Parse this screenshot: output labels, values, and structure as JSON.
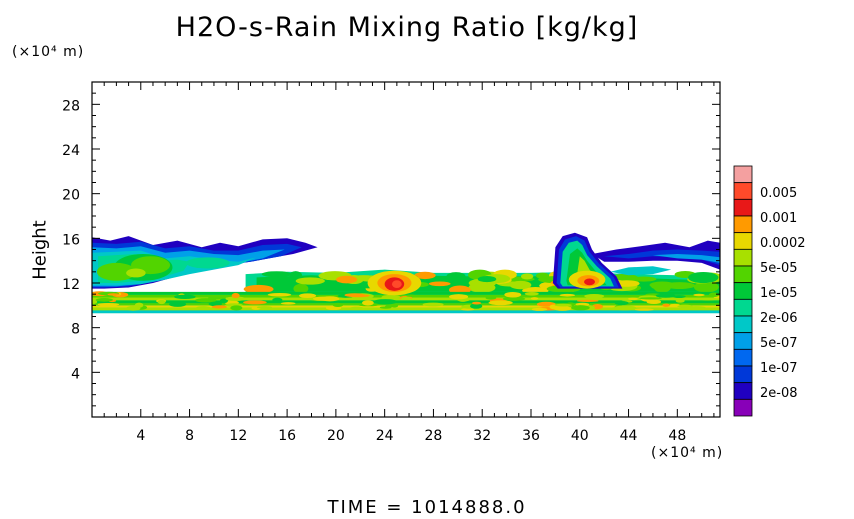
{
  "title": "H2O-s-Rain Mixing Ratio [kg/kg]",
  "y_unit": "(×10⁴ m)",
  "x_unit": "(×10⁴ m)",
  "y_label": "Height",
  "time_label": "TIME  =  1014888.0",
  "chart_data": {
    "type": "heatmap",
    "title": "H2O-s-Rain Mixing Ratio [kg/kg]",
    "xlabel": "",
    "ylabel": "Height",
    "xlim": [
      0,
      51.5
    ],
    "ylim": [
      0,
      30.0
    ],
    "x_ticks": [
      "4",
      "8",
      "12",
      "16",
      "20",
      "24",
      "28",
      "32",
      "36",
      "40",
      "44",
      "48"
    ],
    "y_ticks": [
      "4",
      "8",
      "12",
      "16",
      "20",
      "24",
      "28"
    ],
    "colorbar": {
      "labels": [
        "0.005",
        "0.001",
        "0.0002",
        "5e-05",
        "1e-05",
        "2e-06",
        "5e-07",
        "1e-07",
        "2e-08"
      ],
      "colors": [
        "#f4a0a0",
        "#ff4a2a",
        "#e81818",
        "#ff9a00",
        "#e8d800",
        "#a8e000",
        "#52d400",
        "#00c838",
        "#00d890",
        "#00c8c8",
        "#00a0e8",
        "#0068f0",
        "#0038d8",
        "#2000c0",
        "#8800b8"
      ]
    },
    "features": [
      {
        "name": "main cloud layer",
        "x_range": [
          0,
          51.5
        ],
        "height_range": [
          9.3,
          11.2
        ]
      },
      {
        "name": "left anvil",
        "x_range": [
          0,
          18.5
        ],
        "height_range": [
          11.5,
          16.1
        ]
      },
      {
        "name": "mid-level cloud band",
        "x_range": [
          13.5,
          51.5
        ],
        "height_range": [
          11.0,
          13.2
        ]
      },
      {
        "name": "convective core",
        "x_center": 24.8,
        "height_range": [
          11.0,
          13.0
        ],
        "max_value": 0.001
      },
      {
        "name": "tall convective cell",
        "x_center": 40.5,
        "height_range": [
          11.0,
          16.5
        ],
        "max_value": 0.001
      },
      {
        "name": "right anvil",
        "x_range": [
          40,
          51.5
        ],
        "height_range": [
          12.5,
          16.0
        ]
      }
    ]
  }
}
